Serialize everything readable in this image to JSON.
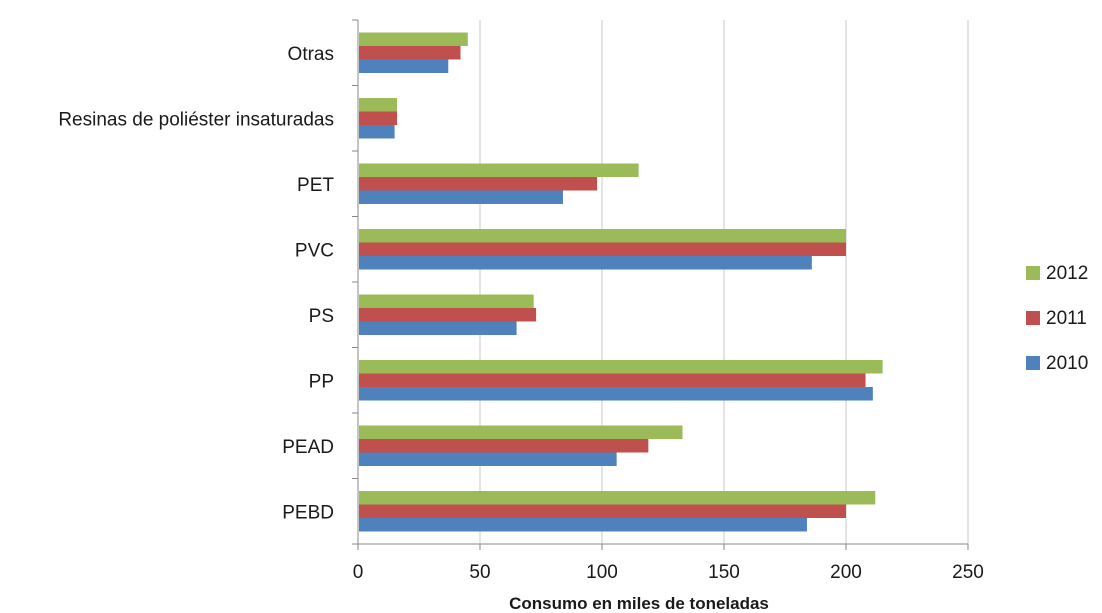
{
  "chart_data": {
    "type": "bar",
    "orientation": "horizontal",
    "categories": [
      "PEBD",
      "PEAD",
      "PP",
      "PS",
      "PVC",
      "PET",
      "Resinas de poliéster insaturadas",
      "Otras"
    ],
    "series": [
      {
        "name": "2010",
        "color": "#4f81bd",
        "values": [
          184,
          106,
          211,
          65,
          186,
          84,
          15,
          37
        ]
      },
      {
        "name": "2011",
        "color": "#c0504d",
        "values": [
          200,
          119,
          208,
          73,
          200,
          98,
          16,
          42
        ]
      },
      {
        "name": "2012",
        "color": "#9bbb59",
        "values": [
          212,
          133,
          215,
          72,
          200,
          115,
          16,
          45
        ]
      }
    ],
    "xlabel": "Consumo en miles de toneladas",
    "ylabel": "",
    "xlim": [
      0,
      250
    ],
    "xticks": [
      0,
      50,
      100,
      150,
      200,
      250
    ],
    "grid": "vertical",
    "legend_position": "right",
    "legend_order": [
      "2012",
      "2011",
      "2010"
    ]
  }
}
